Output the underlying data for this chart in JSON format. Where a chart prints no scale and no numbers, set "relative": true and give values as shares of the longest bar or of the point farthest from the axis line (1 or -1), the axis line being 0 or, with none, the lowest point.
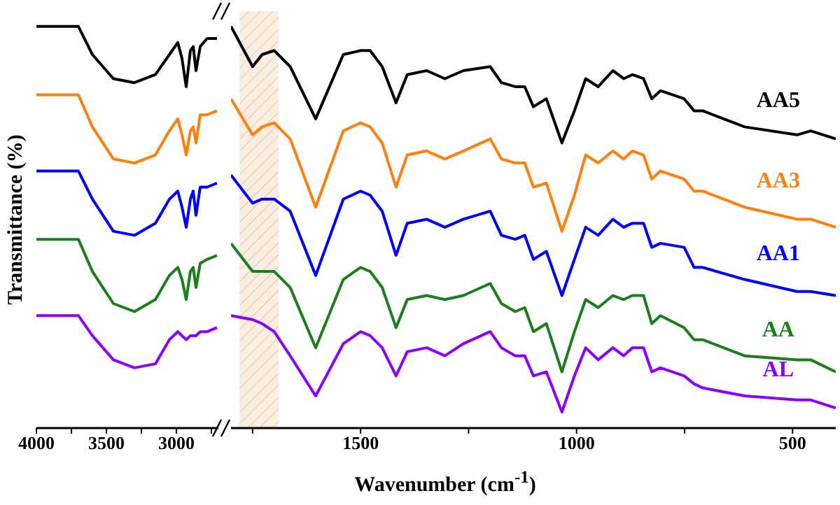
{
  "chart_data": [
    {
      "type": "line",
      "ylabel": "Transmittance (%)",
      "relative": true,
      "xlim": [
        4000,
        2700
      ],
      "xticks": [
        4000,
        {
          "value": 3750,
          "label": null
        },
        3500,
        {
          "value": 3250,
          "label": null
        },
        3000,
        {
          "value": 2750,
          "label": null
        }
      ],
      "x": [
        4000,
        3700,
        3600,
        3450,
        3300,
        3150,
        3050,
        2990,
        2960,
        2930,
        2900,
        2880,
        2860,
        2830,
        2780,
        2710
      ],
      "series": [
        {
          "color": "#000000",
          "values": [
            1.0,
            1.0,
            0.93,
            0.87,
            0.86,
            0.88,
            0.93,
            0.96,
            0.92,
            0.85,
            0.94,
            0.95,
            0.89,
            0.95,
            0.97,
            0.97
          ]
        },
        {
          "color": "#ff7f0e",
          "values": [
            0.83,
            0.83,
            0.75,
            0.67,
            0.66,
            0.68,
            0.74,
            0.77,
            0.73,
            0.68,
            0.74,
            0.75,
            0.71,
            0.78,
            0.78,
            0.79
          ]
        },
        {
          "color": "#0000ff",
          "values": [
            0.64,
            0.64,
            0.57,
            0.49,
            0.48,
            0.51,
            0.57,
            0.59,
            0.55,
            0.5,
            0.57,
            0.59,
            0.53,
            0.6,
            0.6,
            0.61
          ]
        },
        {
          "color": "#1a7f1a",
          "values": [
            0.47,
            0.47,
            0.39,
            0.31,
            0.29,
            0.32,
            0.38,
            0.4,
            0.37,
            0.32,
            0.39,
            0.4,
            0.35,
            0.41,
            0.42,
            0.43
          ]
        },
        {
          "color": "#8b00ff",
          "values": [
            0.28,
            0.28,
            0.23,
            0.17,
            0.15,
            0.16,
            0.22,
            0.24,
            0.23,
            0.22,
            0.23,
            0.23,
            0.23,
            0.24,
            0.24,
            0.25
          ]
        }
      ]
    },
    {
      "type": "line",
      "xlabel": "Wavenumber (cm$^{-1}$)",
      "relative": true,
      "xlim": [
        1800,
        400
      ],
      "xticks": [
        {
          "value": 1750,
          "label": null
        },
        1500,
        {
          "value": 1250,
          "label": null
        },
        1000,
        {
          "value": 750,
          "label": null
        },
        500
      ],
      "bands": [
        {
          "axis": "x",
          "from": 1780,
          "to": 1690,
          "color": "#f2b27a"
        }
      ],
      "x": [
        1800,
        1750,
        1728,
        1700,
        1663,
        1604,
        1540,
        1500,
        1478,
        1450,
        1418,
        1392,
        1347,
        1305,
        1262,
        1200,
        1174,
        1142,
        1120,
        1100,
        1070,
        1034,
        1005,
        979,
        950,
        916,
        891,
        871,
        845,
        826,
        806,
        751,
        728,
        708,
        611,
        490,
        458,
        400
      ],
      "series": [
        {
          "name": "AA5",
          "color": "#000000",
          "values": [
            1.0,
            0.9,
            0.93,
            0.94,
            0.9,
            0.77,
            0.93,
            0.94,
            0.94,
            0.9,
            0.81,
            0.88,
            0.89,
            0.87,
            0.89,
            0.9,
            0.86,
            0.85,
            0.85,
            0.8,
            0.82,
            0.71,
            0.79,
            0.87,
            0.85,
            0.89,
            0.87,
            0.88,
            0.87,
            0.82,
            0.84,
            0.82,
            0.79,
            0.79,
            0.75,
            0.73,
            0.74,
            0.72
          ]
        },
        {
          "name": "AA3",
          "color": "#ff7f0e",
          "values": [
            0.82,
            0.73,
            0.75,
            0.76,
            0.72,
            0.55,
            0.74,
            0.76,
            0.75,
            0.71,
            0.6,
            0.68,
            0.69,
            0.67,
            0.69,
            0.72,
            0.67,
            0.66,
            0.66,
            0.6,
            0.61,
            0.49,
            0.58,
            0.68,
            0.66,
            0.69,
            0.67,
            0.69,
            0.68,
            0.62,
            0.64,
            0.62,
            0.59,
            0.59,
            0.55,
            0.52,
            0.52,
            0.5
          ]
        },
        {
          "name": "AA1",
          "color": "#0000ff",
          "values": [
            0.63,
            0.56,
            0.57,
            0.57,
            0.54,
            0.38,
            0.57,
            0.59,
            0.58,
            0.54,
            0.43,
            0.51,
            0.52,
            0.5,
            0.52,
            0.54,
            0.48,
            0.47,
            0.48,
            0.42,
            0.44,
            0.33,
            0.42,
            0.5,
            0.48,
            0.52,
            0.5,
            0.51,
            0.51,
            0.45,
            0.46,
            0.45,
            0.4,
            0.4,
            0.37,
            0.34,
            0.34,
            0.33
          ]
        },
        {
          "name": "AA",
          "color": "#1a7f1a",
          "values": [
            0.46,
            0.39,
            0.39,
            0.39,
            0.35,
            0.2,
            0.37,
            0.4,
            0.39,
            0.35,
            0.25,
            0.32,
            0.33,
            0.32,
            0.33,
            0.36,
            0.31,
            0.29,
            0.3,
            0.24,
            0.26,
            0.14,
            0.24,
            0.32,
            0.3,
            0.33,
            0.32,
            0.33,
            0.33,
            0.26,
            0.28,
            0.25,
            0.22,
            0.22,
            0.18,
            0.17,
            0.17,
            0.14
          ]
        },
        {
          "name": "AL",
          "color": "#8b00ff",
          "values": [
            0.28,
            0.27,
            0.26,
            0.24,
            0.18,
            0.08,
            0.21,
            0.24,
            0.23,
            0.2,
            0.13,
            0.19,
            0.2,
            0.18,
            0.21,
            0.24,
            0.2,
            0.18,
            0.18,
            0.13,
            0.14,
            0.04,
            0.13,
            0.2,
            0.17,
            0.2,
            0.18,
            0.2,
            0.2,
            0.14,
            0.15,
            0.13,
            0.11,
            0.1,
            0.08,
            0.07,
            0.07,
            0.05
          ]
        }
      ]
    }
  ]
}
